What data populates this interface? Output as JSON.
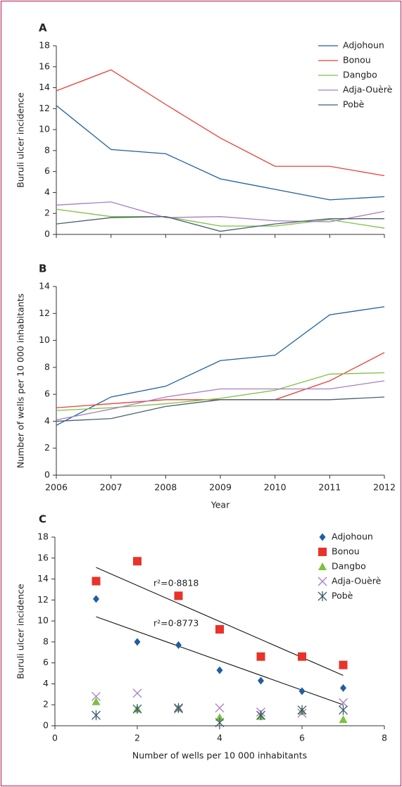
{
  "chart_data": [
    {
      "type": "line",
      "panel_label": "A",
      "ylabel": "Buruli ulcer incidence",
      "x": [
        2006,
        2007,
        2008,
        2009,
        2010,
        2011,
        2012
      ],
      "xlim": [
        2006,
        2012
      ],
      "ylim": [
        0,
        18
      ],
      "yticks": [
        0,
        2,
        4,
        6,
        8,
        10,
        12,
        14,
        16,
        18
      ],
      "legend": "upper right",
      "series": [
        {
          "name": "Adjohoun",
          "color": "#1f5fa0",
          "values": [
            12.3,
            8.1,
            7.7,
            5.3,
            4.3,
            3.3,
            3.6
          ]
        },
        {
          "name": "Bonou",
          "color": "#e8403a",
          "values": [
            13.7,
            15.7,
            12.4,
            9.2,
            6.5,
            6.5,
            5.6
          ]
        },
        {
          "name": "Dangbo",
          "color": "#7cc242",
          "values": [
            2.4,
            1.7,
            1.7,
            0.8,
            0.8,
            1.4,
            0.6
          ]
        },
        {
          "name": "Adja-Ouèrè",
          "color": "#a87cc4",
          "values": [
            2.8,
            3.1,
            1.6,
            1.7,
            1.3,
            1.2,
            2.2
          ]
        },
        {
          "name": "Pobè",
          "color": "#4a6070",
          "values": [
            1.0,
            1.6,
            1.7,
            0.3,
            1.0,
            1.5,
            1.5
          ]
        }
      ]
    },
    {
      "type": "line",
      "panel_label": "B",
      "ylabel": "Number of wells per 10 000 inhabitants",
      "xlabel": "Year",
      "x": [
        2006,
        2007,
        2008,
        2009,
        2010,
        2011,
        2012
      ],
      "xlim": [
        2006,
        2012
      ],
      "xticks": [
        2006,
        2007,
        2008,
        2009,
        2010,
        2011,
        2012
      ],
      "ylim": [
        0,
        14
      ],
      "yticks": [
        0,
        2,
        4,
        6,
        8,
        10,
        12,
        14
      ],
      "series": [
        {
          "color": "#1f5fa0",
          "values": [
            3.7,
            5.8,
            6.6,
            8.5,
            8.9,
            11.9,
            12.5
          ]
        },
        {
          "color": "#e8403a",
          "values": [
            5.0,
            5.3,
            5.6,
            5.6,
            5.6,
            7.0,
            9.1
          ]
        },
        {
          "color": "#7cc242",
          "values": [
            4.8,
            5.0,
            5.3,
            5.7,
            6.3,
            7.5,
            7.6
          ]
        },
        {
          "color": "#a87cc4",
          "values": [
            4.1,
            4.9,
            5.8,
            6.4,
            6.4,
            6.4,
            7.0
          ]
        },
        {
          "color": "#4a6070",
          "values": [
            4.0,
            4.2,
            5.1,
            5.6,
            5.6,
            5.6,
            5.8
          ]
        }
      ]
    },
    {
      "type": "scatter",
      "panel_label": "C",
      "ylabel": "Buruli ulcer incidence",
      "xlabel": "Number of wells per 10 000 inhabitants",
      "x": [
        1,
        2,
        3,
        4,
        5,
        6,
        7
      ],
      "xlim": [
        0,
        8
      ],
      "xticks": [
        0,
        2,
        4,
        6,
        8
      ],
      "ylim": [
        0,
        18
      ],
      "yticks": [
        0,
        2,
        4,
        6,
        8,
        10,
        12,
        14,
        16,
        18
      ],
      "legend": "upper right",
      "series": [
        {
          "name": "Adjohoun",
          "color": "#1f5fa0",
          "marker": "diamond",
          "values": [
            12.1,
            8.0,
            7.7,
            5.3,
            4.3,
            3.3,
            3.6
          ]
        },
        {
          "name": "Bonou",
          "color": "#e8332a",
          "marker": "square",
          "values": [
            13.8,
            15.7,
            12.4,
            9.2,
            6.6,
            6.6,
            5.8
          ]
        },
        {
          "name": "Dangbo",
          "color": "#7cc242",
          "marker": "triangle",
          "values": [
            2.3,
            1.6,
            1.7,
            0.8,
            0.9,
            1.4,
            0.6
          ]
        },
        {
          "name": "Adja-Ouèrè",
          "color": "#a87cc4",
          "marker": "x",
          "values": [
            2.8,
            3.1,
            1.6,
            1.7,
            1.3,
            1.2,
            2.2
          ]
        },
        {
          "name": "Pobè",
          "color": "#3d5a6e",
          "marker": "asterisk",
          "values": [
            1.0,
            1.6,
            1.7,
            0.3,
            1.0,
            1.5,
            1.5
          ]
        }
      ],
      "trendlines": [
        {
          "x": [
            1,
            7
          ],
          "y": [
            15.1,
            4.8
          ],
          "label": "r²=0·8818"
        },
        {
          "x": [
            1,
            7
          ],
          "y": [
            10.4,
            2.0
          ],
          "label": "r²=0·8773"
        }
      ]
    }
  ]
}
